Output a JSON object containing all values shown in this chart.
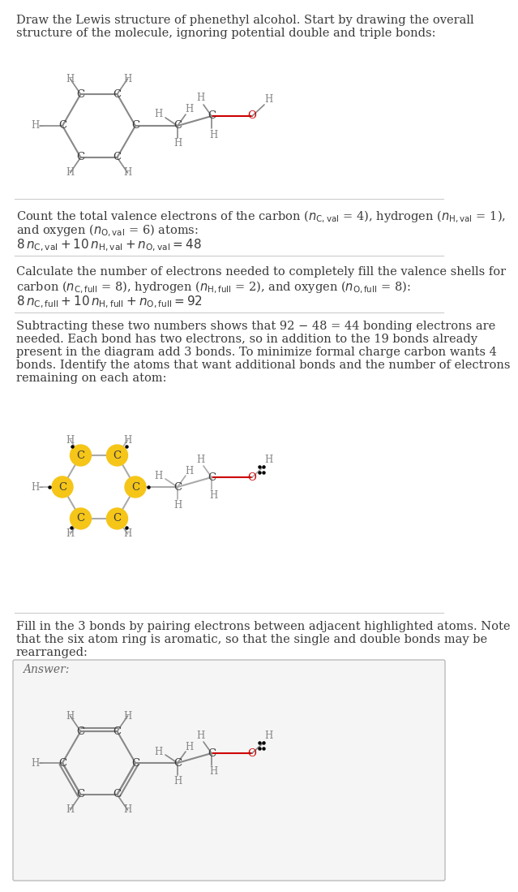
{
  "bg_color": "#ffffff",
  "text_color": "#3a3a3a",
  "bond_color": "#888888",
  "oxygen_color": "#cc0000",
  "highlight_color": "#f5c518",
  "lone_pair_color": "#000000",
  "answer_box_color": "#f5f5f5",
  "answer_box_edge": "#bbbbbb",
  "para1": "Draw the Lewis structure of phenethyl alcohol. Start by drawing the overall structure of the molecule, ignoring potential double and triple bonds:",
  "para2_line1": "Count the total valence electrons of the carbon (n",
  "para2_line2": "and oxygen (n",
  "para2_formula": "8 n",
  "para3_line1": "Calculate the number of electrons needed to completely fill the valence shells for",
  "para3_line2": "carbon (n",
  "para3_formula": "8 n",
  "para4": "Subtracting these two numbers shows that 92 − 48 = 44 bonding electrons are needed. Each bond has two electrons, so in addition to the 19 bonds already present in the diagram add 3 bonds. To minimize formal charge carbon wants 4 bonds. Identify the atoms that want additional bonds and the number of electrons remaining on each atom:",
  "para5": "Fill in the 3 bonds by pairing electrons between adjacent highlighted atoms. Note that the six atom ring is aromatic, so that the single and double bonds may be rearranged:",
  "answer_label": "Answer:"
}
